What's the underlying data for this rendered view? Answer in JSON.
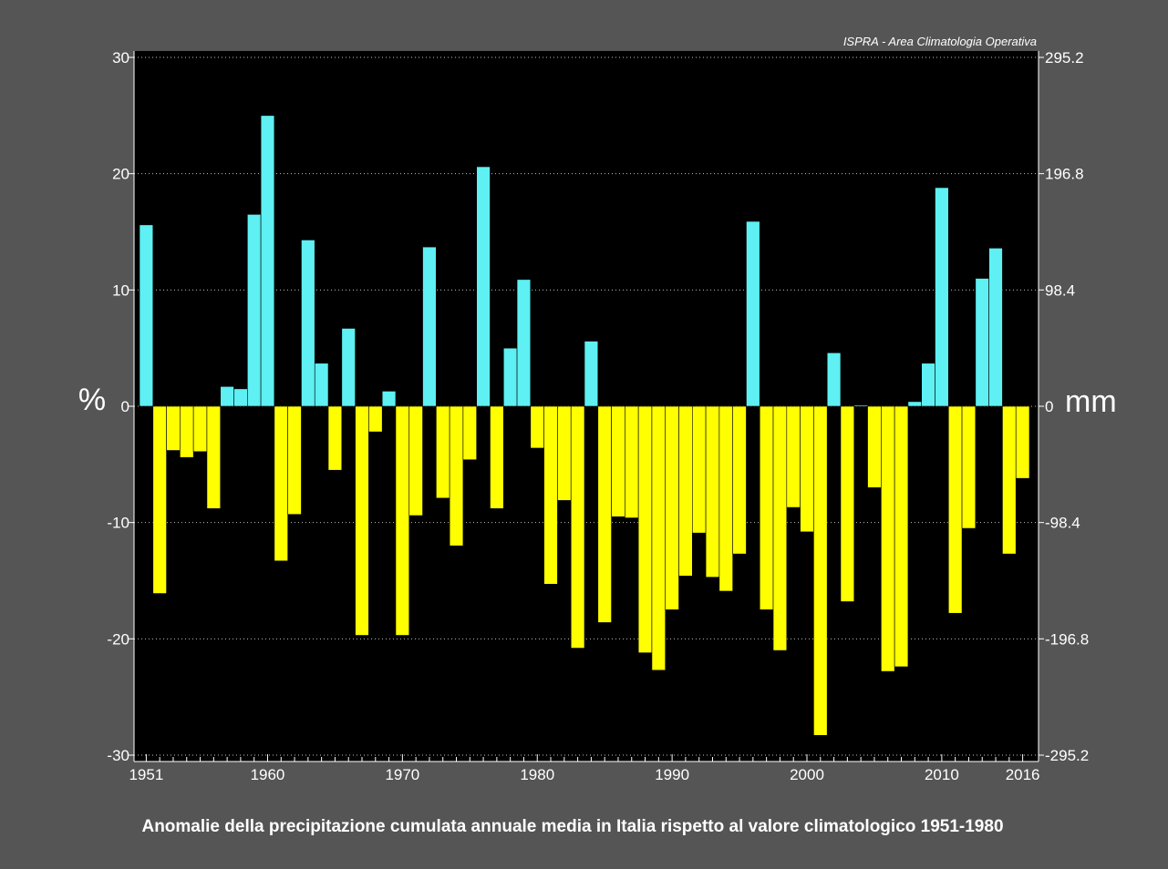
{
  "chart_data": {
    "type": "bar",
    "title": "Anomalie della precipitazione cumulata annuale media in Italia rispetto al valore climatologico 1951-1980",
    "source": "ISPRA - Area Climatologia Operativa",
    "ylabel_left": "%",
    "ylabel_right": "mm",
    "ylim": [
      -30,
      30
    ],
    "y_ticks_left": [
      "30",
      "20",
      "10",
      "0",
      "-10",
      "-20",
      "-30"
    ],
    "y_ticks_right": [
      "295.2",
      "196.8",
      "98.4",
      "0",
      "-98.4",
      "-196.8",
      "-295.2"
    ],
    "x_tick_labels": [
      "1951",
      "1960",
      "1970",
      "1980",
      "1990",
      "2000",
      "2010",
      "2016"
    ],
    "x_tick_years": [
      1951,
      1960,
      1970,
      1980,
      1990,
      2000,
      2010,
      2016
    ],
    "grid": true,
    "positive_color": "#5ef0f2",
    "negative_color": "#ffff00",
    "categories": [
      1951,
      1952,
      1953,
      1954,
      1955,
      1956,
      1957,
      1958,
      1959,
      1960,
      1961,
      1962,
      1963,
      1964,
      1965,
      1966,
      1967,
      1968,
      1969,
      1970,
      1971,
      1972,
      1973,
      1974,
      1975,
      1976,
      1977,
      1978,
      1979,
      1980,
      1981,
      1982,
      1983,
      1984,
      1985,
      1986,
      1987,
      1988,
      1989,
      1990,
      1991,
      1992,
      1993,
      1994,
      1995,
      1996,
      1997,
      1998,
      1999,
      2000,
      2001,
      2002,
      2003,
      2004,
      2005,
      2006,
      2007,
      2008,
      2009,
      2010,
      2011,
      2012,
      2013,
      2014,
      2015,
      2016
    ],
    "values": [
      15.6,
      -16.1,
      -3.8,
      -4.4,
      -3.9,
      -8.8,
      1.7,
      1.5,
      16.5,
      25.0,
      -13.3,
      -9.3,
      14.3,
      3.7,
      -5.5,
      6.7,
      -19.7,
      -2.2,
      1.3,
      -19.7,
      -9.4,
      13.7,
      -7.9,
      -12.0,
      -4.6,
      20.6,
      -8.8,
      5.0,
      10.9,
      -3.6,
      -15.3,
      -8.1,
      -20.8,
      5.6,
      -18.6,
      -9.5,
      -9.6,
      -21.2,
      -22.7,
      -17.5,
      -14.6,
      -10.9,
      -14.7,
      -15.9,
      -12.7,
      15.9,
      -17.5,
      -21.0,
      -8.7,
      -10.8,
      -28.3,
      4.6,
      -16.8,
      0.1,
      -7.0,
      -22.8,
      -22.4,
      0.4,
      3.7,
      18.8,
      -17.8,
      -10.5,
      11.0,
      13.6,
      -12.7,
      -6.2
    ]
  }
}
